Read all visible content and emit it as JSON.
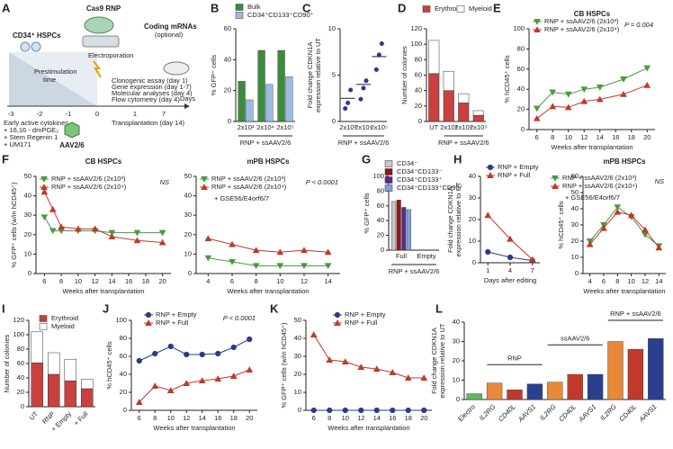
{
  "diagram": {
    "panel": "A",
    "cells": "CD34⁺ HSPCs",
    "cas9": "Cas9 RNP",
    "mrna": [
      "Coding mRNAs",
      "(optional)"
    ],
    "prestim": [
      "Prestimulation",
      "time"
    ],
    "electro": "Electroporation",
    "aav": "AAV2/6",
    "timeline": [
      "-3",
      "-2",
      "-1",
      "0",
      "1",
      "7"
    ],
    "days": "Days",
    "cytokines": [
      "Early active cytokines",
      "+ 16,16 - dmPGE₂",
      "+ Stem Regenin 1",
      "+ UM171"
    ],
    "assays": [
      "Clonogenic assay (day 1)",
      "Gene expression (day 1-7)",
      "Molecular analyses (day 4)",
      "Flow cytometry (day 4)",
      "Transplantation (day 14)"
    ]
  },
  "chart_data": [
    {
      "type": "bar",
      "panel": "B",
      "ylabel": [
        "% GFP⁺ cells"
      ],
      "xlabel": "RNP + ssAAV2/6",
      "categories": [
        "2x10³",
        "2x10⁴",
        "2x10⁵"
      ],
      "series": [
        {
          "name": "Bulk",
          "color": "#3d8b3d",
          "values": [
            26,
            46,
            46
          ]
        },
        {
          "name": "CD34⁺CD133⁺CD90⁺",
          "color": "#9bbbe3",
          "values": [
            14,
            24,
            29
          ]
        }
      ],
      "ylim": [
        0,
        60
      ],
      "yticks": [
        0,
        20,
        40,
        60
      ]
    },
    {
      "type": "dot",
      "panel": "C",
      "ylabel": [
        "Fold change CDKN1A",
        "expression relative to UT"
      ],
      "xlabel": "RNP + ssAAV2/6",
      "categories": [
        "2x10³",
        "2x10⁴",
        "2x10⁵"
      ],
      "values": [
        2.5,
        4,
        7
      ],
      "points": [
        [
          1.4,
          2.0,
          3.4
        ],
        [
          2.4,
          3.6,
          4.4
        ],
        [
          5.6,
          7.2,
          8.4
        ]
      ],
      "color": "#2b3a8c",
      "ylim": [
        0,
        10
      ],
      "yticks": [
        0,
        5,
        10
      ]
    },
    {
      "type": "stacked-bar",
      "panel": "D",
      "ylabel": [
        "Number of colonies"
      ],
      "xlabel": "RNP + ssAAV2/6",
      "categories": [
        "UT",
        "2x10³",
        "2x10⁴",
        "2x10⁵"
      ],
      "series": [
        {
          "name": "Erythroid",
          "color": "#c9413f",
          "values": [
            62,
            40,
            24,
            8
          ]
        },
        {
          "name": "Myeloid",
          "color": "#ffffff",
          "values": [
            43,
            25,
            12,
            6
          ]
        }
      ],
      "ylim": [
        0,
        120
      ],
      "yticks": [
        0,
        20,
        40,
        60,
        80,
        100,
        120
      ]
    },
    {
      "type": "line",
      "panel": "E",
      "title": "CB HSPCs",
      "ylabel": [
        "% hCD45⁺ cells"
      ],
      "xlabel": "Weeks after transplantation",
      "annotation": "P = 0.004",
      "x": [
        6,
        8,
        10,
        12,
        14,
        17,
        20
      ],
      "series": [
        {
          "name": "RNP + ssAAV2/6 (2x10³)",
          "color": "#4a9a3e",
          "marker": "down",
          "values": [
            21,
            37,
            35,
            40,
            42,
            50,
            61
          ]
        },
        {
          "name": "RNP + ssAAV2/6 (2x10⁴)",
          "color": "#c0392b",
          "marker": "up",
          "values": [
            11,
            23,
            22,
            28,
            30,
            35,
            44
          ]
        }
      ],
      "xlim": [
        5,
        21
      ],
      "xticks": [
        6,
        8,
        10,
        12,
        14,
        16,
        18,
        20
      ],
      "ylim": [
        0,
        100
      ],
      "yticks": [
        0,
        20,
        40,
        60,
        80,
        100
      ]
    },
    {
      "type": "line",
      "panel": "F",
      "title": "CB HSPCs",
      "ylabel": [
        "% GFP⁺ cells (w/in hCD45⁺)"
      ],
      "xlabel": "Weeks after transplantation",
      "annotation": "NS",
      "x": [
        6,
        7,
        8,
        10,
        12,
        14,
        17,
        20
      ],
      "series": [
        {
          "name": "RNP + ssAAV2/6 (2x10³)",
          "color": "#4a9a3e",
          "marker": "down",
          "values": [
            29,
            22,
            22,
            22,
            22,
            21,
            21,
            21
          ]
        },
        {
          "name": "RNP + ssAAV2/6 (2x10⁴)",
          "color": "#c0392b",
          "marker": "up",
          "values": [
            42,
            33,
            24,
            23,
            23,
            19,
            17,
            16
          ]
        }
      ],
      "xlim": [
        5,
        21
      ],
      "xticks": [
        6,
        8,
        10,
        12,
        14,
        16,
        18,
        20
      ],
      "ylim": [
        0,
        50
      ],
      "yticks": [
        0,
        10,
        20,
        30,
        40,
        50
      ]
    },
    {
      "type": "line",
      "title": "mPB HSPCs",
      "xlabel": "Weeks after transplantation",
      "annotation": "P < 0.0001",
      "note": "+ GSE56/E4orf6/7",
      "x": [
        4,
        6,
        8,
        10,
        12,
        14
      ],
      "series": [
        {
          "name": "RNP + ssAAV2/6 (2x10³)",
          "color": "#4a9a3e",
          "marker": "down",
          "values": [
            8,
            6,
            4,
            4,
            4,
            4
          ]
        },
        {
          "name": "RNP + ssAAV2/6 (2x10⁴)",
          "color": "#c0392b",
          "marker": "up",
          "values": [
            18,
            15,
            12,
            11,
            12,
            11
          ]
        }
      ],
      "xlim": [
        3,
        15
      ],
      "xticks": [
        4,
        6,
        8,
        10,
        12,
        14
      ],
      "ylim": [
        0,
        50
      ],
      "yticks": [
        0,
        10,
        20,
        30,
        40,
        50
      ]
    },
    {
      "type": "bar",
      "panel": "G",
      "ylabel": [
        "% GFP⁺ cells"
      ],
      "xlabel": "RNP + ssAAV2/6",
      "categories": [
        "Full",
        "Empty"
      ],
      "series": [
        {
          "name": "CD34⁻",
          "color": "#c8c8c8",
          "values": [
            66,
            0
          ]
        },
        {
          "name": "CD34⁺CD133⁻",
          "color": "#8b1a1a",
          "values": [
            68,
            0
          ]
        },
        {
          "name": "CD34⁺CD133⁺",
          "color": "#5b2a86",
          "values": [
            58,
            0
          ]
        },
        {
          "name": "CD34⁺CD133⁺CD90⁺",
          "color": "#7da3dc",
          "values": [
            55,
            0
          ]
        }
      ],
      "ylim": [
        0,
        100
      ],
      "yticks": [
        0,
        20,
        40,
        60,
        80,
        100
      ]
    },
    {
      "type": "line",
      "panel": "H",
      "ylabel": [
        "Fold change CDKN1A",
        "expression relative to UT"
      ],
      "xlabel": "Days after editing",
      "x": [
        1,
        4,
        7
      ],
      "series": [
        {
          "name": "RNP + Empty",
          "color": "#2b3a8c",
          "marker": "circle",
          "values": [
            5,
            2.5,
            1
          ]
        },
        {
          "name": "RNP + Full",
          "color": "#c0392b",
          "marker": "up",
          "values": [
            22,
            11,
            1.5
          ]
        }
      ],
      "xlim": [
        0,
        8
      ],
      "xticks": [
        1,
        4,
        7
      ],
      "ylim": [
        0,
        40
      ],
      "yticks": [
        0,
        10,
        20,
        30,
        40
      ]
    },
    {
      "type": "line",
      "title": "mPB HSPCs",
      "ylabel": [
        "% hCD45⁺ cells"
      ],
      "xlabel": "Weeks after transplantation",
      "annotation": "NS",
      "note": "+ GSE56/E4orf6/7",
      "x": [
        4,
        6,
        8,
        10,
        12,
        14
      ],
      "series": [
        {
          "name": "RNP + ssAAV2/6 (2x10³)",
          "color": "#4a9a3e",
          "marker": "down",
          "values": [
            20,
            30,
            41,
            35,
            24,
            17
          ]
        },
        {
          "name": "RNP + ssAAV2/6 (2x10⁴)",
          "color": "#c0392b",
          "marker": "up",
          "values": [
            18,
            28,
            38,
            36,
            27,
            16
          ]
        }
      ],
      "xlim": [
        3,
        15
      ],
      "xticks": [
        4,
        6,
        8,
        10,
        12,
        14
      ],
      "ylim": [
        0,
        60
      ],
      "yticks": [
        0,
        10,
        20,
        30,
        40,
        50,
        60
      ]
    },
    {
      "type": "stacked-bar",
      "panel": "I",
      "ylabel": [
        "Number of colonies"
      ],
      "categories": [
        "UT",
        "RNP",
        "+ Empty",
        "+ Full"
      ],
      "series": [
        {
          "name": "Erythroid",
          "color": "#c9413f",
          "values": [
            61,
            45,
            36,
            25
          ]
        },
        {
          "name": "Myeloid",
          "color": "#ffffff",
          "values": [
            43,
            30,
            30,
            13
          ]
        }
      ],
      "ylim": [
        0,
        120
      ],
      "yticks": [
        0,
        20,
        40,
        60,
        80,
        100,
        120
      ]
    },
    {
      "type": "line",
      "panel": "J",
      "ylabel": [
        "% hCD45⁺ cells"
      ],
      "xlabel": "Weeks after transplantation",
      "annotation": "P < 0.0001",
      "x": [
        6,
        8,
        10,
        12,
        14,
        16,
        18,
        20
      ],
      "series": [
        {
          "name": "RNP + Empty",
          "color": "#2b3a8c",
          "marker": "circle",
          "values": [
            55,
            63,
            71,
            62,
            62,
            63,
            70,
            79
          ]
        },
        {
          "name": "RNP + Full",
          "color": "#c0392b",
          "marker": "up",
          "values": [
            9,
            27,
            22,
            30,
            33,
            35,
            38,
            45
          ]
        }
      ],
      "xlim": [
        5,
        21
      ],
      "xticks": [
        6,
        8,
        10,
        12,
        14,
        16,
        18,
        20
      ],
      "ylim": [
        0,
        100
      ],
      "yticks": [
        0,
        20,
        40,
        60,
        80,
        100
      ]
    },
    {
      "type": "line",
      "panel": "K",
      "ylabel": [
        "% GFP⁺ cells (w/in hCD45⁺)"
      ],
      "xlabel": "Weeks after transplantation",
      "x": [
        6,
        8,
        10,
        12,
        14,
        16,
        18,
        20
      ],
      "series": [
        {
          "name": "RNP + Empty",
          "color": "#2b3a8c",
          "marker": "circle",
          "values": [
            0,
            0,
            0,
            0,
            0,
            0,
            0,
            0
          ]
        },
        {
          "name": "RNP + Full",
          "color": "#c0392b",
          "marker": "up",
          "values": [
            42,
            28,
            27,
            24,
            23,
            21,
            18,
            18
          ]
        }
      ],
      "xlim": [
        5,
        21
      ],
      "xticks": [
        6,
        8,
        10,
        12,
        14,
        16,
        18,
        20
      ],
      "ylim": [
        0,
        50
      ],
      "yticks": [
        0,
        10,
        20,
        30,
        40,
        50
      ]
    },
    {
      "type": "bar",
      "panel": "L",
      "ylabel": [
        "Fold change CDKN1A",
        "expression relative to UT"
      ],
      "groups": [
        "RNP",
        "ssAAV2/6",
        "RNP + ssAAV2/6"
      ],
      "categories": [
        "Electro",
        "IL2RG",
        "CD40L",
        "AAVS1",
        "IL2RG",
        "CD40L",
        "AAVS1",
        "IL2RG",
        "CD40L",
        "AAVS1"
      ],
      "values": [
        3,
        8.5,
        5,
        8,
        9,
        13,
        13,
        30,
        26,
        31.5
      ],
      "colors": [
        "#5cb85c",
        "#e8893a",
        "#c0392b",
        "#2a3f8f",
        "#e8893a",
        "#c0392b",
        "#2a3f8f",
        "#e8893a",
        "#c0392b",
        "#2a3f8f"
      ],
      "ylim": [
        0,
        40
      ],
      "yticks": [
        0,
        10,
        20,
        30,
        40
      ]
    }
  ]
}
